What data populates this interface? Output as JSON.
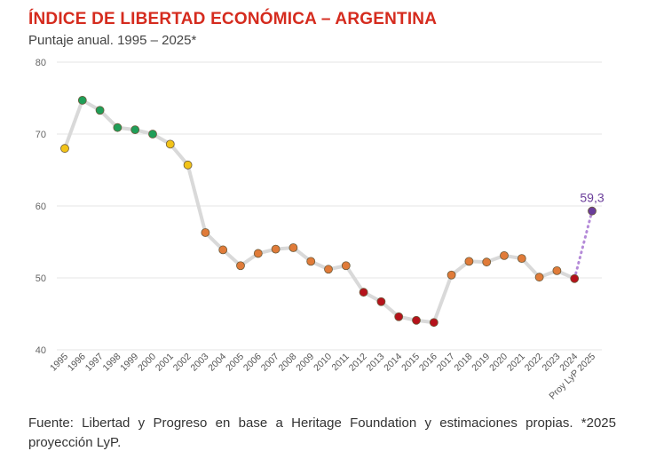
{
  "header": {
    "title": "ÍNDICE DE LIBERTAD ECONÓMICA – ARGENTINA",
    "subtitle": "Puntaje anual. 1995 – 2025*"
  },
  "footer": {
    "source": "Fuente: Libertad y Progreso en base a Heritage Foundation y estimaciones propias. *2025 proyección LyP."
  },
  "colors": {
    "title": "#d52b1e",
    "line": "#d9d9d9",
    "projection_line": "#b48ad8",
    "projection_point": "#6a3d9a",
    "yellow": "#f2c318",
    "green": "#1f9e58",
    "orange": "#e07b39",
    "red": "#b5121b"
  },
  "chart_data": {
    "type": "line",
    "title": "ÍNDICE DE LIBERTAD ECONÓMICA – ARGENTINA",
    "subtitle": "Puntaje anual. 1995 – 2025*",
    "xlabel": "",
    "ylabel": "",
    "ylim": [
      40,
      80
    ],
    "yticks": [
      40,
      50,
      60,
      70,
      80
    ],
    "grid": true,
    "categories": [
      "1995",
      "1996",
      "1997",
      "1998",
      "1999",
      "2000",
      "2001",
      "2002",
      "2003",
      "2004",
      "2005",
      "2006",
      "2007",
      "2008",
      "2009",
      "2010",
      "2011",
      "2012",
      "2013",
      "2014",
      "2015",
      "2016",
      "2017",
      "2018",
      "2019",
      "2020",
      "2021",
      "2022",
      "2023",
      "2024",
      "Proy LyP 2025"
    ],
    "values": [
      68.0,
      74.7,
      73.3,
      70.9,
      70.6,
      70.0,
      68.6,
      65.7,
      56.3,
      53.9,
      51.7,
      53.4,
      54.0,
      54.2,
      52.3,
      51.2,
      51.7,
      48.0,
      46.7,
      44.6,
      44.1,
      43.8,
      50.4,
      52.3,
      52.2,
      53.1,
      52.7,
      50.1,
      51.0,
      49.9,
      59.3
    ],
    "point_colors": [
      "yellow",
      "green",
      "green",
      "green",
      "green",
      "green",
      "yellow",
      "yellow",
      "orange",
      "orange",
      "orange",
      "orange",
      "orange",
      "orange",
      "orange",
      "orange",
      "orange",
      "red",
      "red",
      "red",
      "red",
      "red",
      "orange",
      "orange",
      "orange",
      "orange",
      "orange",
      "orange",
      "orange",
      "red",
      "projection"
    ],
    "projection_label": "59,3"
  }
}
